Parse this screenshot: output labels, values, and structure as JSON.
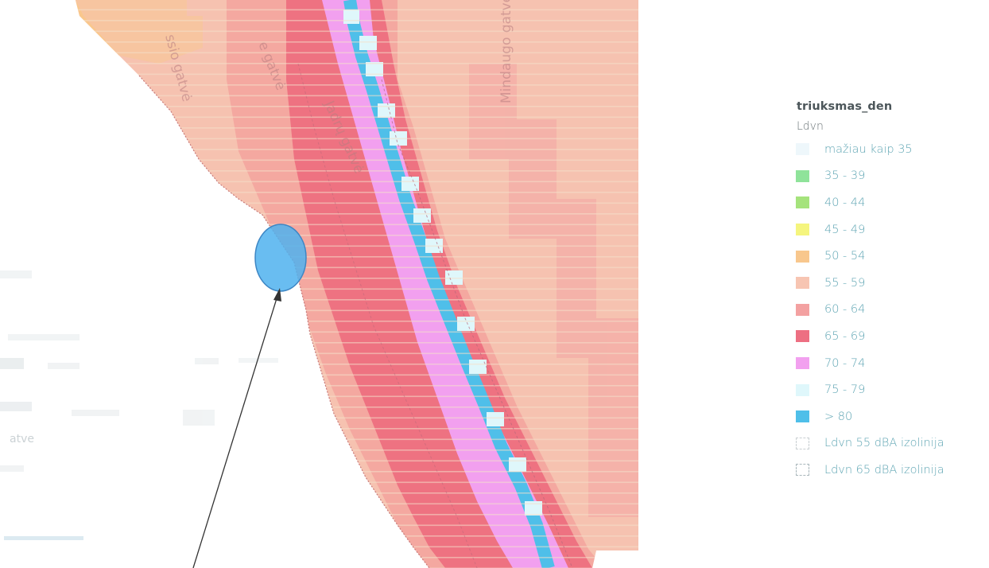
{
  "map": {
    "street_labels": [
      "Jadrų gatvė",
      "e gatvė",
      "Mindaugo gatvė",
      "ssio gatvė"
    ],
    "partial_label_left": "atve"
  },
  "legend": {
    "title": "triuksmas_den",
    "subtitle": "Ldvn",
    "classes": [
      {
        "label": "mažiau kaip 35",
        "color": "#eef7fb"
      },
      {
        "label": "35 - 39",
        "color": "#8fe39a"
      },
      {
        "label": "40 - 44",
        "color": "#a5e37c"
      },
      {
        "label": "45 - 49",
        "color": "#f5f57e"
      },
      {
        "label": "50 - 54",
        "color": "#f8c78d"
      },
      {
        "label": "55 - 59",
        "color": "#f7c5b2"
      },
      {
        "label": "60 - 64",
        "color": "#f3a1a1"
      },
      {
        "label": "65 - 69",
        "color": "#ed6f82"
      },
      {
        "label": "70 - 74",
        "color": "#f2a0ef"
      },
      {
        "label": "75 - 79",
        "color": "#dff7fb"
      },
      {
        "label": "> 80",
        "color": "#4fbfe9"
      }
    ],
    "isolines": [
      {
        "label": "Ldvn 55 dBA izolinija"
      },
      {
        "label": "Ldvn 65 dBA izolinija"
      }
    ]
  }
}
